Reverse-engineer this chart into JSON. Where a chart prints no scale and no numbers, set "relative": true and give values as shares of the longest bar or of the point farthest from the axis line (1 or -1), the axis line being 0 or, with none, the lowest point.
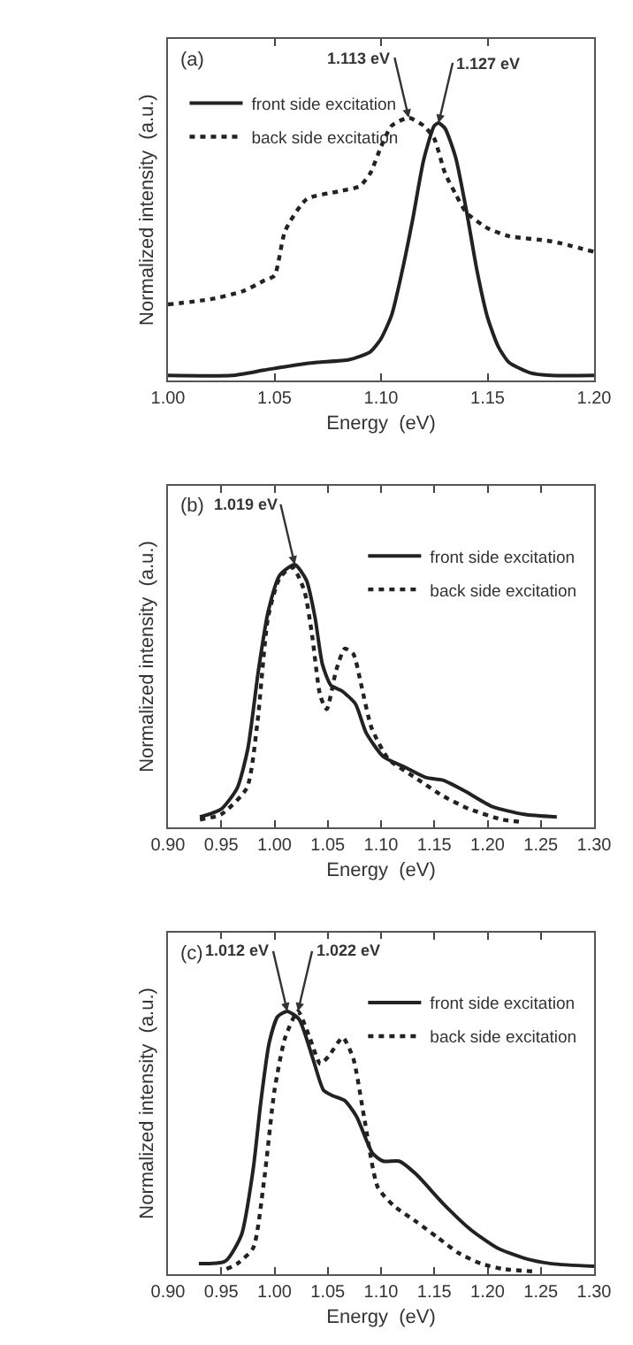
{
  "chart_data": [
    {
      "type": "line",
      "relative": true,
      "tick_labels": "x",
      "legend": "top left",
      "xlabel": "Energy  (eV)",
      "ylabel": "Normalized intensity  (a.u.)",
      "xlim": [
        1.0,
        1.2
      ],
      "xticks": [
        {
          "value": 1.0,
          "label": "1.00"
        },
        {
          "value": 1.05,
          "label": "1.05"
        },
        {
          "value": 1.1,
          "label": "1.10"
        },
        {
          "value": 1.15,
          "label": "1.15"
        },
        {
          "value": 1.2,
          "label": "1.20"
        }
      ],
      "annotations": [
        "(a)",
        {
          "text": "1.113 eV",
          "x": 1.113,
          "y": 1.0
        },
        {
          "text": "1.127 eV",
          "x": 1.127,
          "y": 0.98
        }
      ],
      "series": [
        {
          "name": "front side excitation",
          "color": "#222222",
          "line_style": "solid",
          "x": [
            1.0,
            1.03,
            1.045,
            1.06,
            1.07,
            1.085,
            1.095,
            1.1,
            1.105,
            1.11,
            1.115,
            1.12,
            1.125,
            1.127,
            1.13,
            1.135,
            1.14,
            1.145,
            1.15,
            1.155,
            1.16,
            1.17,
            1.18,
            1.2
          ],
          "values": [
            0.02,
            0.02,
            0.04,
            0.06,
            0.07,
            0.08,
            0.11,
            0.16,
            0.25,
            0.42,
            0.62,
            0.84,
            0.97,
            0.98,
            0.96,
            0.85,
            0.65,
            0.42,
            0.24,
            0.13,
            0.07,
            0.03,
            0.02,
            0.02
          ]
        },
        {
          "name": "back side excitation",
          "color": "#222222",
          "line_style": "dotted",
          "x": [
            1.0,
            1.02,
            1.035,
            1.045,
            1.05,
            1.055,
            1.065,
            1.08,
            1.09,
            1.095,
            1.1,
            1.105,
            1.113,
            1.12,
            1.125,
            1.13,
            1.135,
            1.14,
            1.15,
            1.16,
            1.18,
            1.2
          ],
          "values": [
            0.29,
            0.31,
            0.34,
            0.38,
            0.4,
            0.57,
            0.69,
            0.72,
            0.74,
            0.79,
            0.89,
            0.97,
            1.0,
            0.97,
            0.92,
            0.79,
            0.71,
            0.64,
            0.58,
            0.55,
            0.53,
            0.49
          ]
        }
      ]
    },
    {
      "type": "line",
      "relative": true,
      "tick_labels": "x",
      "legend": "top right",
      "xlabel": "Energy  (eV)",
      "ylabel": "Normalized intensity  (a.u.)",
      "xlim": [
        0.9,
        1.3
      ],
      "xticks": [
        {
          "value": 0.9,
          "label": "0.90"
        },
        0.95,
        {
          "value": 1.0,
          "label": "1.00"
        },
        1.05,
        {
          "value": 1.1,
          "label": "1.10"
        },
        1.15,
        {
          "value": 1.2,
          "label": "1.20"
        },
        1.25,
        {
          "value": 1.3,
          "label": "1.30"
        }
      ],
      "annotations": [
        "(b)",
        {
          "text": "1.019 eV",
          "x": 1.019,
          "y": 1.0
        }
      ],
      "series": [
        {
          "name": "front side excitation",
          "color": "#222222",
          "line_style": "solid",
          "x": [
            0.93,
            0.95,
            0.965,
            0.975,
            0.985,
            0.994,
            1.005,
            1.019,
            1.03,
            1.038,
            1.045,
            1.053,
            1.063,
            1.076,
            1.086,
            1.102,
            1.122,
            1.142,
            1.158,
            1.178,
            1.204,
            1.234,
            1.265
          ],
          "values": [
            0.04,
            0.07,
            0.15,
            0.3,
            0.6,
            0.82,
            0.96,
            1.0,
            0.94,
            0.8,
            0.62,
            0.54,
            0.52,
            0.47,
            0.36,
            0.27,
            0.23,
            0.19,
            0.18,
            0.14,
            0.08,
            0.05,
            0.04
          ]
        },
        {
          "name": "back side excitation",
          "color": "#222222",
          "line_style": "dotted",
          "x": [
            0.93,
            0.95,
            0.974,
            0.984,
            0.994,
            1.005,
            1.017,
            1.028,
            1.035,
            1.043,
            1.049,
            1.058,
            1.066,
            1.074,
            1.081,
            1.091,
            1.107,
            1.132,
            1.158,
            1.183,
            1.214,
            1.234
          ],
          "values": [
            0.03,
            0.05,
            0.15,
            0.4,
            0.8,
            0.95,
            0.99,
            0.9,
            0.74,
            0.5,
            0.45,
            0.6,
            0.68,
            0.66,
            0.55,
            0.38,
            0.26,
            0.19,
            0.12,
            0.07,
            0.03,
            0.02
          ]
        }
      ]
    },
    {
      "type": "line",
      "relative": true,
      "tick_labels": "x",
      "legend": "top right",
      "xlabel": "Energy  (eV)",
      "ylabel": "Normalized intensity  (a.u.)",
      "xlim": [
        0.9,
        1.3
      ],
      "xticks": [
        {
          "value": 0.9,
          "label": "0.90"
        },
        0.95,
        {
          "value": 1.0,
          "label": "1.00"
        },
        1.05,
        {
          "value": 1.1,
          "label": "1.10"
        },
        1.15,
        {
          "value": 1.2,
          "label": "1.20"
        },
        1.25,
        {
          "value": 1.3,
          "label": "1.30"
        }
      ],
      "annotations": [
        "(c)",
        {
          "text": "1.012 eV",
          "x": 1.012,
          "y": 1.0
        },
        {
          "text": "1.022 eV",
          "x": 1.022,
          "y": 1.0
        }
      ],
      "series": [
        {
          "name": "front side excitation",
          "color": "#222222",
          "line_style": "solid",
          "x": [
            0.929,
            0.954,
            0.969,
            0.98,
            0.987,
            0.995,
            1.003,
            1.012,
            1.023,
            1.036,
            1.046,
            1.054,
            1.066,
            1.077,
            1.092,
            1.102,
            1.117,
            1.133,
            1.158,
            1.184,
            1.209,
            1.235,
            1.26,
            1.3
          ],
          "values": [
            0.04,
            0.05,
            0.15,
            0.4,
            0.65,
            0.88,
            0.98,
            1.0,
            0.97,
            0.82,
            0.7,
            0.68,
            0.66,
            0.6,
            0.46,
            0.43,
            0.43,
            0.38,
            0.27,
            0.17,
            0.1,
            0.06,
            0.04,
            0.03
          ]
        },
        {
          "name": "back side excitation",
          "color": "#222222",
          "line_style": "dotted",
          "x": [
            0.955,
            0.965,
            0.98,
            0.99,
            1.0,
            1.01,
            1.022,
            1.033,
            1.043,
            1.051,
            1.064,
            1.074,
            1.084,
            1.097,
            1.112,
            1.133,
            1.153,
            1.173,
            1.194,
            1.214,
            1.245
          ],
          "values": [
            0.02,
            0.04,
            0.1,
            0.35,
            0.7,
            0.9,
            1.0,
            0.9,
            0.8,
            0.83,
            0.9,
            0.82,
            0.6,
            0.33,
            0.26,
            0.2,
            0.14,
            0.08,
            0.04,
            0.02,
            0.01
          ]
        }
      ]
    }
  ]
}
